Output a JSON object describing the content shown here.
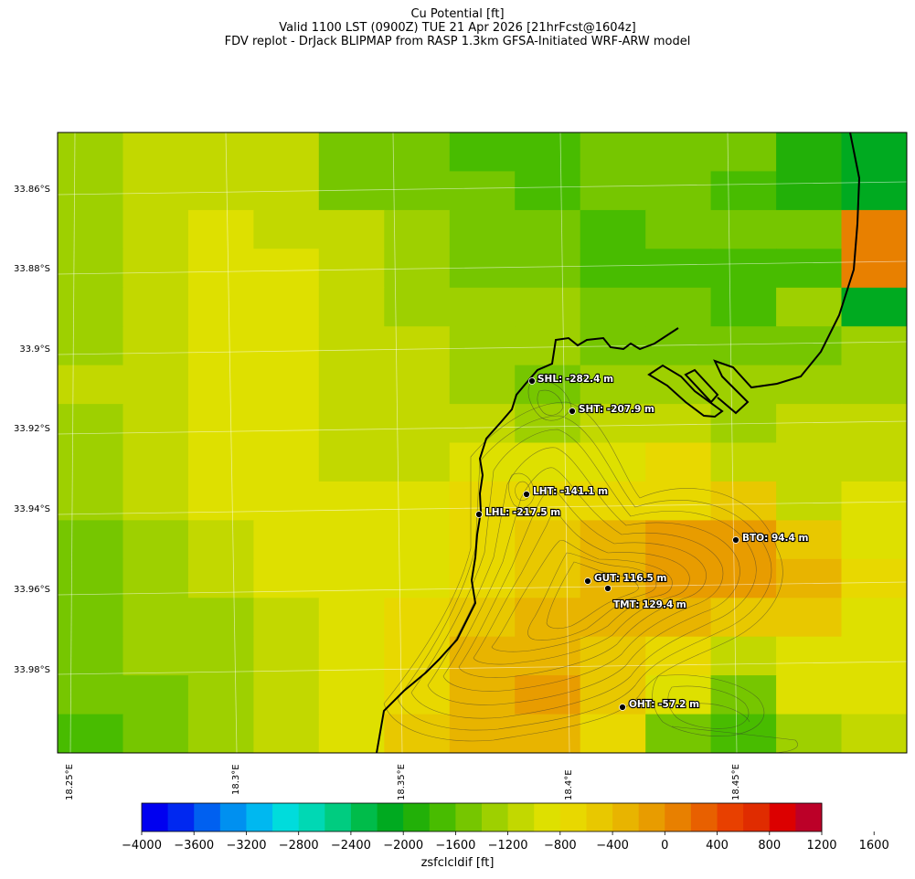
{
  "title": {
    "line1": "Cu Potential [ft]",
    "line2": "Valid 1100 LST (0900Z) TUE 21 Apr 2026 [21hrFcst@1604z]",
    "line3": "FDV replot - DrJack BLIPMAP from RASP 1.3km GFSA-Initiated WRF-ARW model"
  },
  "map": {
    "lat_labels": [
      "33.86°S",
      "33.88°S",
      "33.9°S",
      "33.92°S",
      "33.94°S",
      "33.96°S",
      "33.98°S"
    ],
    "lon_labels": [
      "18.25°E",
      "18.3°E",
      "18.35°E",
      "18.4°E",
      "18.45°E"
    ],
    "stations": [
      {
        "label": "SHL: -282.4 m"
      },
      {
        "label": "SHT: -207.9 m"
      },
      {
        "label": "LHT: -141.1 m"
      },
      {
        "label": "LHL: -217.5 m"
      },
      {
        "label": "BTO: 94.4 m"
      },
      {
        "label": "GUT: 116.5 m"
      },
      {
        "label": "TMT: 129.4 m"
      },
      {
        "label": "OHT: -57.2 m"
      }
    ]
  },
  "colorbar": {
    "title": "zsfclcldif [ft]",
    "tick_labels": [
      "−4000",
      "−3600",
      "−3200",
      "−2800",
      "−2400",
      "−2000",
      "−1600",
      "−1200",
      "−800",
      "−400",
      "0",
      "400",
      "800",
      "1200",
      "1600"
    ],
    "colors": [
      "#0000f0",
      "#0028f0",
      "#0060f0",
      "#0090f0",
      "#00b8f0",
      "#00dcdc",
      "#00d8b4",
      "#00cc80",
      "#00bc4a",
      "#00aa20",
      "#22b008",
      "#48bc00",
      "#76c600",
      "#9ed000",
      "#c2d800",
      "#dee000",
      "#e8d800",
      "#e8c800",
      "#e8b400",
      "#e89c00",
      "#e88000",
      "#e86000",
      "#e84000",
      "#e02c00",
      "#dc0000",
      "#bc0028"
    ]
  }
}
